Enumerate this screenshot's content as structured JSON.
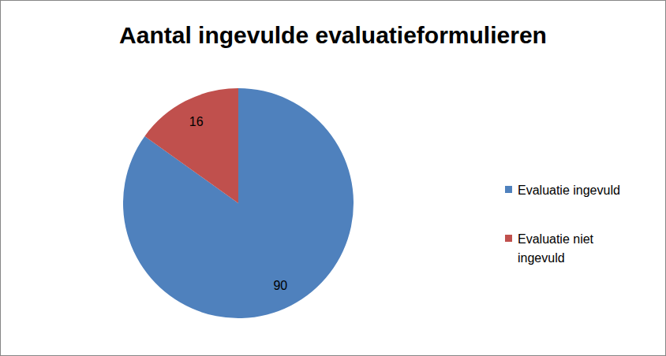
{
  "chart_data": {
    "type": "pie",
    "title": "Aantal ingevulde evaluatieformulieren",
    "categories": [
      "Evaluatie ingevuld",
      "Evaluatie niet ingevuld"
    ],
    "values": [
      90,
      16
    ],
    "colors": [
      "#4f81bd",
      "#c0504d"
    ],
    "data_labels": true,
    "legend": "right"
  }
}
